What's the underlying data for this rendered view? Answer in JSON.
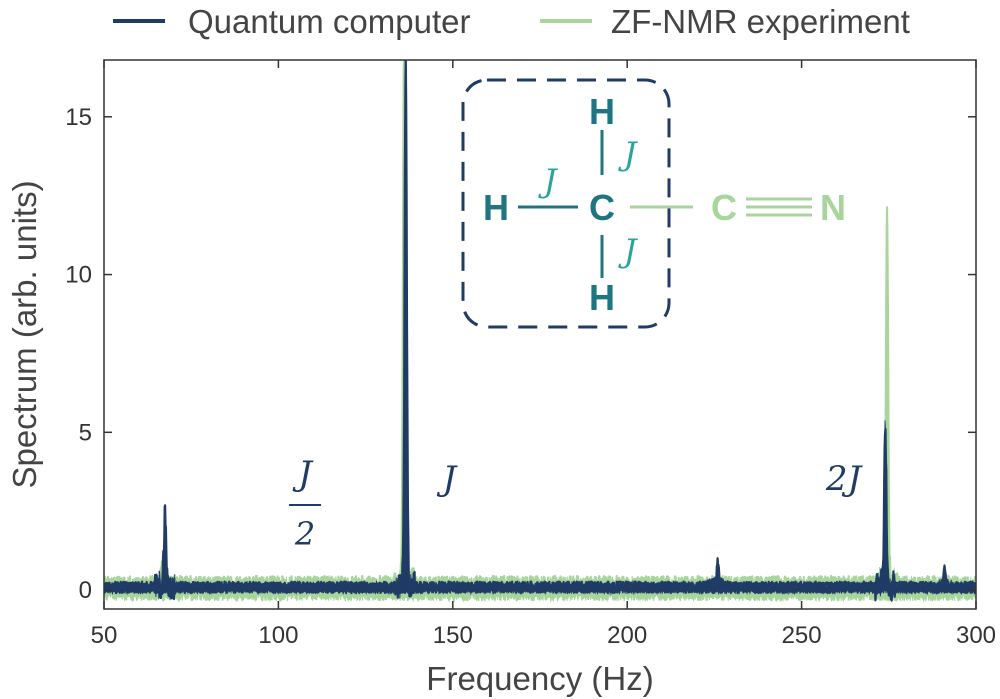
{
  "colors": {
    "quantum": "#1f3b66",
    "experiment": "#a8d59c",
    "inner_j": "#27a59c",
    "atom_dark": "#1f7681",
    "box": "#1f3b66",
    "annot": "#1f3b66"
  },
  "legend": {
    "position": "top",
    "series_labels": [
      "Quantum computer",
      "ZF-NMR experiment"
    ]
  },
  "chart_data": {
    "type": "line",
    "xlabel": "Frequency (Hz)",
    "ylabel": "Spectrum (arb. units)",
    "xlim": [
      50,
      300
    ],
    "ylim": [
      -0.6,
      16.8
    ],
    "xticks": [
      50,
      100,
      150,
      200,
      250,
      300
    ],
    "yticks": [
      0,
      5,
      10,
      15
    ],
    "xtick_labels": [
      "50",
      "100",
      "150",
      "200",
      "250",
      "300"
    ],
    "ytick_labels": [
      "0",
      "5",
      "10",
      "15"
    ],
    "grid": false,
    "series": [
      {
        "name": "Quantum computer",
        "baseline": 0.15,
        "noise": 0.12,
        "peaks": [
          {
            "x": 67.5,
            "y": 2.3
          },
          {
            "x": 136.5,
            "y": 16.7
          },
          {
            "x": 226,
            "y": 0.75
          },
          {
            "x": 274,
            "y": 4.9
          },
          {
            "x": 291,
            "y": 0.5
          }
        ]
      },
      {
        "name": "ZF-NMR experiment",
        "baseline": 0.2,
        "noise": 0.25,
        "peaks": [
          {
            "x": 66.5,
            "y": 0.6
          },
          {
            "x": 136,
            "y": 16.6
          },
          {
            "x": 274.5,
            "y": 12.0
          }
        ]
      }
    ],
    "annotations": [
      {
        "label_top": "J",
        "label_bottom": "2",
        "x": 67.5,
        "y": 2.8,
        "kind": "fraction"
      },
      {
        "label": "J",
        "x": 149,
        "y": 3.5,
        "kind": "text"
      },
      {
        "label": "2J",
        "x": 262,
        "y": 3.5,
        "kind": "text"
      }
    ]
  },
  "inset": {
    "atoms": {
      "h_top": "H",
      "h_left": "H",
      "c_center": "C",
      "h_bottom": "H",
      "c_right": "C",
      "n_right": "N"
    },
    "couplings": {
      "j_top": "J",
      "j_left": "J",
      "j_bottom": "J"
    }
  }
}
